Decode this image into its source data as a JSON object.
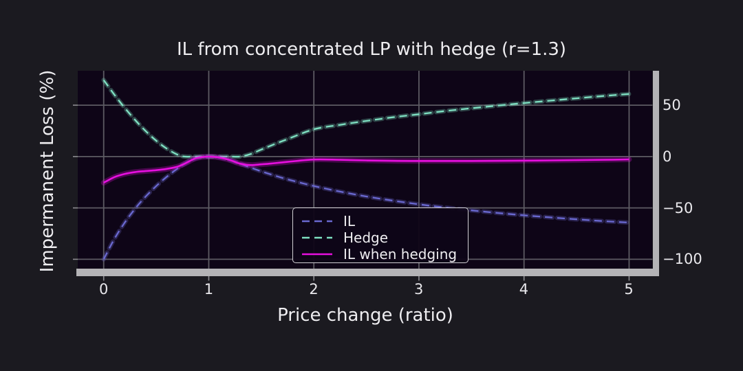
{
  "figure": {
    "title": "IL from concentrated LP with hedge (r=1.3)",
    "xlabel": "Price change (ratio)",
    "ylabel": "Impermanent Loss (%)",
    "background": "#1b1a20",
    "axes_background": "#0e0517",
    "grid_color": "#5d5b63",
    "spine_color": "#b4b3b6",
    "text_color": "#eeedf0"
  },
  "axes": {
    "xtick_labels": [
      "0",
      "1",
      "2",
      "3",
      "4",
      "5"
    ],
    "ytick_labels": [
      "50",
      "0",
      "−50",
      "−100"
    ]
  },
  "legend": {
    "entries": [
      {
        "label": "IL",
        "color": "#6a69d1",
        "dash": true
      },
      {
        "label": "Hedge",
        "color": "#7fe1c3",
        "dash": true
      },
      {
        "label": "IL when hedging",
        "color": "#e70fdf",
        "dash": false
      }
    ]
  },
  "chart_data": {
    "type": "line",
    "title": "IL from concentrated LP with hedge (r=1.3)",
    "xlabel": "Price change (ratio)",
    "ylabel": "Impermanent Loss (%)",
    "xlim": [
      -0.247,
      5.223
    ],
    "ylim": [
      -109.1,
      83.5
    ],
    "xticks": [
      0,
      1,
      2,
      3,
      4,
      5
    ],
    "yticks": [
      50,
      0,
      -50,
      -100
    ],
    "grid": true,
    "yaxis_side": "right",
    "legend_position": "lower center",
    "x": [
      0,
      0.1,
      0.2,
      0.3,
      0.4,
      0.5,
      0.6,
      0.7,
      0.769,
      0.85,
      0.9,
      1,
      1.1,
      1.2,
      1.3,
      1.4,
      1.5,
      1.6,
      1.75,
      2,
      2.25,
      2.5,
      2.75,
      3,
      3.25,
      3.5,
      3.75,
      4,
      4.25,
      4.5,
      4.75,
      5
    ],
    "series": [
      {
        "name": "IL",
        "color": "#6a69d1",
        "style": "dashed",
        "values": [
          -100,
          -80.5,
          -64.3,
          -50.6,
          -38.9,
          -28.7,
          -19.7,
          -11.9,
          -7,
          -2.7,
          -1.1,
          0,
          -0.9,
          -3.4,
          -7,
          -10.8,
          -14.4,
          -17.7,
          -22.2,
          -28.7,
          -34.1,
          -38.9,
          -42.9,
          -46.5,
          -49.6,
          -52.4,
          -54.9,
          -57.2,
          -59.2,
          -61.1,
          -62.8,
          -64.3
        ]
      },
      {
        "name": "Hedge",
        "color": "#7fe1c3",
        "style": "dashed",
        "values": [
          74.5,
          60.4,
          47.4,
          35.5,
          24.8,
          15.4,
          7.7,
          2,
          0,
          0,
          0,
          0,
          0,
          0,
          0,
          2.5,
          6.8,
          11,
          17,
          26.5,
          30.9,
          34.7,
          38.2,
          41.2,
          44.3,
          47,
          49.6,
          52.1,
          54.4,
          56.7,
          58.9,
          60.9
        ]
      },
      {
        "name": "IL when hedging",
        "color": "#e70fdf",
        "style": "solid",
        "values": [
          -25.5,
          -20.1,
          -16.9,
          -15.1,
          -14.1,
          -13.3,
          -12,
          -9.9,
          -7,
          -2.7,
          -1.1,
          0,
          -0.9,
          -3.4,
          -7,
          -8.3,
          -7.6,
          -6.7,
          -5.2,
          -2.9,
          -3.2,
          -3.8,
          -4.2,
          -4.3,
          -4.3,
          -4.3,
          -4.2,
          -4,
          -3.8,
          -3.5,
          -3.2,
          -2.8
        ]
      }
    ]
  }
}
